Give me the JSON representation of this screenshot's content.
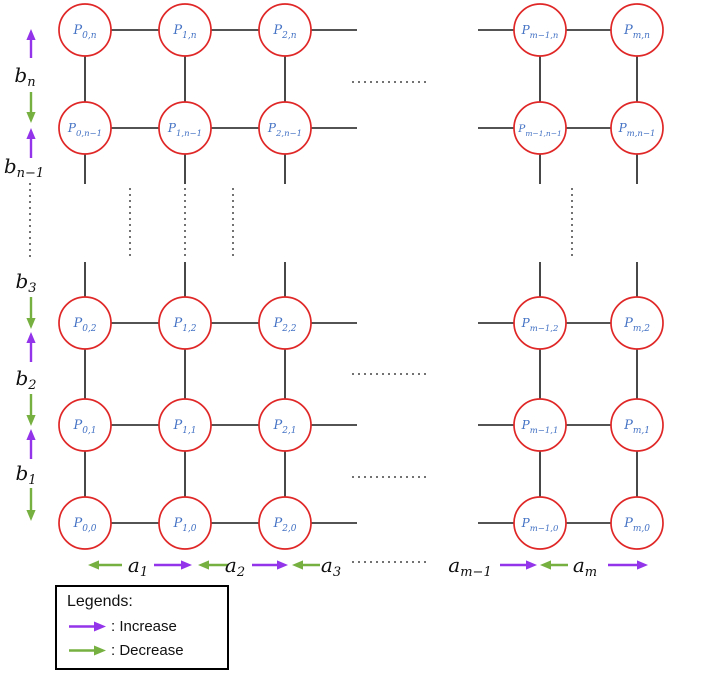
{
  "colors": {
    "edge": "#1a1a1a",
    "dots": "#444444",
    "node_stroke": "#e02727",
    "node_label": "#4472c4",
    "axis_label": "#111111",
    "increase": "#9333ea",
    "decrease": "#76b041"
  },
  "graph": {
    "node_base": "P",
    "columns": [
      "0",
      "1",
      "2",
      "m−1",
      "m"
    ],
    "rows": [
      "n",
      "n−1",
      "2",
      "1",
      "0"
    ],
    "nodes": [
      {
        "c": 0,
        "r": 0,
        "sub": "0,n"
      },
      {
        "c": 1,
        "r": 0,
        "sub": "1,n"
      },
      {
        "c": 2,
        "r": 0,
        "sub": "2,n"
      },
      {
        "c": 3,
        "r": 0,
        "sub": "m−1,n"
      },
      {
        "c": 4,
        "r": 0,
        "sub": "m,n"
      },
      {
        "c": 0,
        "r": 1,
        "sub": "0,n−1"
      },
      {
        "c": 1,
        "r": 1,
        "sub": "1,n−1"
      },
      {
        "c": 2,
        "r": 1,
        "sub": "2,n−1"
      },
      {
        "c": 3,
        "r": 1,
        "sub": "m−1,n−1"
      },
      {
        "c": 4,
        "r": 1,
        "sub": "m,n−1"
      },
      {
        "c": 0,
        "r": 2,
        "sub": "0,2"
      },
      {
        "c": 1,
        "r": 2,
        "sub": "1,2"
      },
      {
        "c": 2,
        "r": 2,
        "sub": "2,2"
      },
      {
        "c": 3,
        "r": 2,
        "sub": "m−1,2"
      },
      {
        "c": 4,
        "r": 2,
        "sub": "m,2"
      },
      {
        "c": 0,
        "r": 3,
        "sub": "0,1"
      },
      {
        "c": 1,
        "r": 3,
        "sub": "1,1"
      },
      {
        "c": 2,
        "r": 3,
        "sub": "2,1"
      },
      {
        "c": 3,
        "r": 3,
        "sub": "m−1,1"
      },
      {
        "c": 4,
        "r": 3,
        "sub": "m,1"
      },
      {
        "c": 0,
        "r": 4,
        "sub": "0,0"
      },
      {
        "c": 1,
        "r": 4,
        "sub": "1,0"
      },
      {
        "c": 2,
        "r": 4,
        "sub": "2,0"
      },
      {
        "c": 3,
        "r": 4,
        "sub": "m−1,0"
      },
      {
        "c": 4,
        "r": 4,
        "sub": "m,0"
      }
    ]
  },
  "left_axis": {
    "labels": [
      {
        "base": "b",
        "sub": "n"
      },
      {
        "base": "b",
        "sub": "n−1"
      },
      {
        "base": "b",
        "sub": "3"
      },
      {
        "base": "b",
        "sub": "2"
      },
      {
        "base": "b",
        "sub": "1"
      }
    ]
  },
  "bottom_axis": {
    "labels": [
      {
        "base": "a",
        "sub": "1"
      },
      {
        "base": "a",
        "sub": "2"
      },
      {
        "base": "a",
        "sub": "3"
      },
      {
        "base": "a",
        "sub": "m−1"
      },
      {
        "base": "a",
        "sub": "m"
      }
    ]
  },
  "legend": {
    "title": "Legends:",
    "items": [
      {
        "name": "increase",
        "label": ": Increase"
      },
      {
        "name": "decrease",
        "label": ": Decrease"
      }
    ]
  }
}
